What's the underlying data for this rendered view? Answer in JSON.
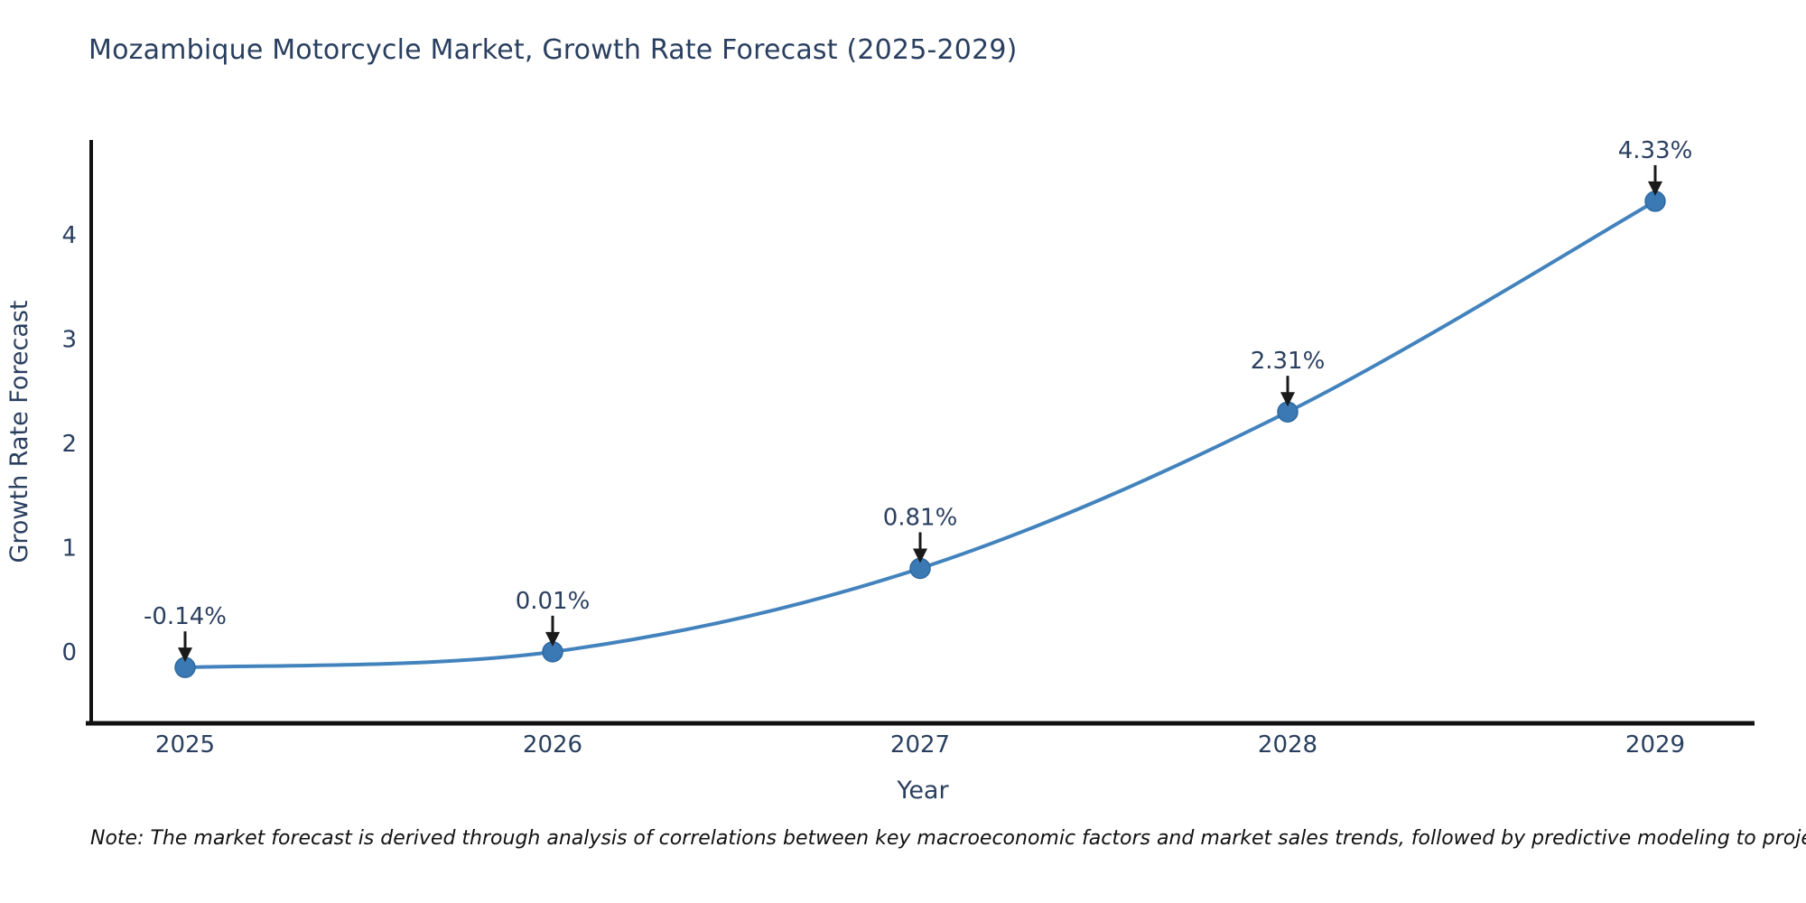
{
  "title": "Mozambique Motorcycle Market, Growth Rate Forecast (2025-2029)",
  "note": "Note: The market forecast is derived through analysis of correlations between key macroeconomic factors and market sales trends, followed by predictive modeling to project future sales.",
  "chart_data": {
    "type": "line",
    "title": "Mozambique Motorcycle Market, Growth Rate Forecast (2025-2029)",
    "x": [
      2025,
      2026,
      2027,
      2028,
      2029
    ],
    "x_ticks": [
      "2025",
      "2026",
      "2027",
      "2028",
      "2029"
    ],
    "y_ticks": [
      0,
      1,
      2,
      3,
      4
    ],
    "series": [
      {
        "name": "Growth Rate Forecast",
        "values": [
          -0.14,
          0.01,
          0.81,
          2.31,
          4.33
        ]
      }
    ],
    "point_labels": [
      "-0.14%",
      "0.01%",
      "0.81%",
      "2.31%",
      "4.33%"
    ],
    "xlabel": "Year",
    "ylabel": "Growth Rate Forecast",
    "xlim": [
      2024.74,
      2029.27
    ],
    "ylim": [
      -0.68,
      4.95
    ],
    "line_shape": "spline",
    "grid": false,
    "legend": "none",
    "markers": true,
    "annotations_have_arrows": true,
    "colors": {
      "line": "#4383bd",
      "marker_fill": "#3b79b4",
      "marker_edge": "#2f699f",
      "axis": "#111111",
      "tick_text": "#2a3f5f",
      "annotation_text": "#2a3f5f",
      "arrow": "#1a1a1a",
      "title_text": "#2a3f5f",
      "background": "#ffffff"
    }
  }
}
